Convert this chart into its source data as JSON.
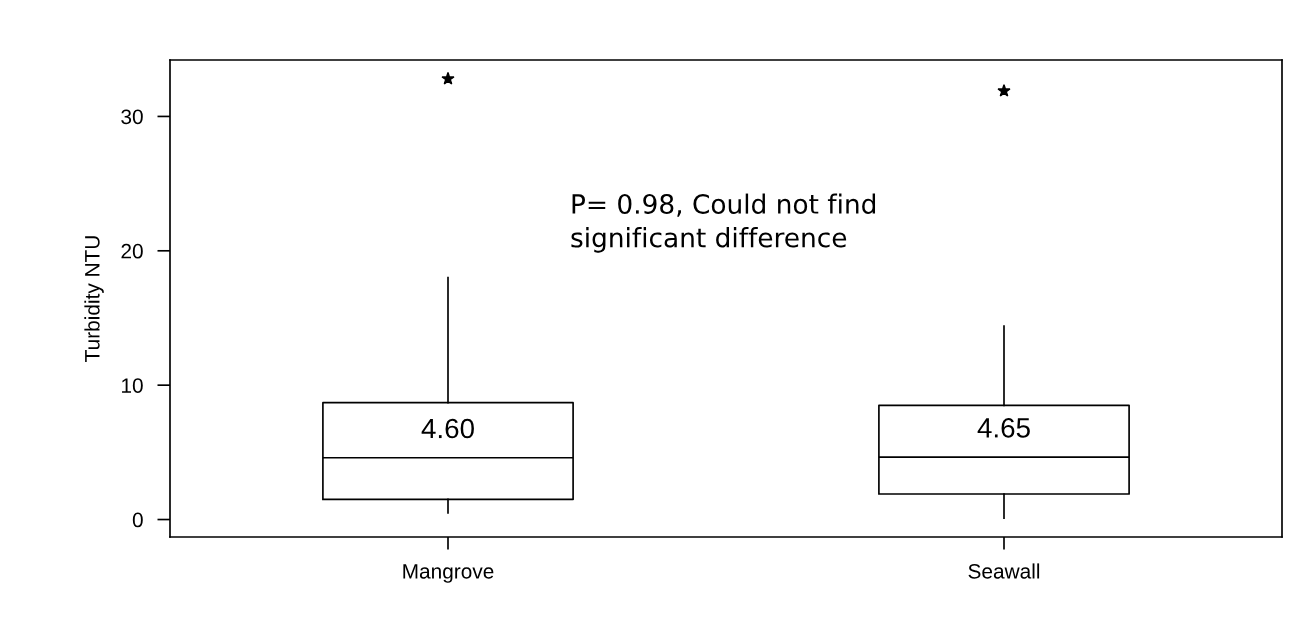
{
  "chart_data": {
    "type": "box",
    "ylabel": "Turbidity NTU",
    "categories": [
      "Mangrove",
      "Seawall"
    ],
    "boxes": [
      {
        "low": 0.5,
        "q1": 1.5,
        "median": 4.6,
        "q3": 8.7,
        "high": 18.0,
        "outliers": [
          32.8
        ]
      },
      {
        "low": 0.1,
        "q1": 1.9,
        "median": 4.65,
        "q3": 8.5,
        "high": 14.4,
        "outliers": [
          31.9
        ]
      }
    ],
    "ylim": [
      -1.3,
      34.2
    ],
    "yticks": [
      0,
      10,
      20,
      30
    ],
    "grid": false,
    "marker": "star",
    "annotations": [
      {
        "text": "4.60",
        "x": "Mangrove",
        "y": 4.6
      },
      {
        "text": "4.65",
        "x": "Seawall",
        "y": 4.65
      },
      "P= 0.98, Could not find\nsignificant difference"
    ]
  }
}
